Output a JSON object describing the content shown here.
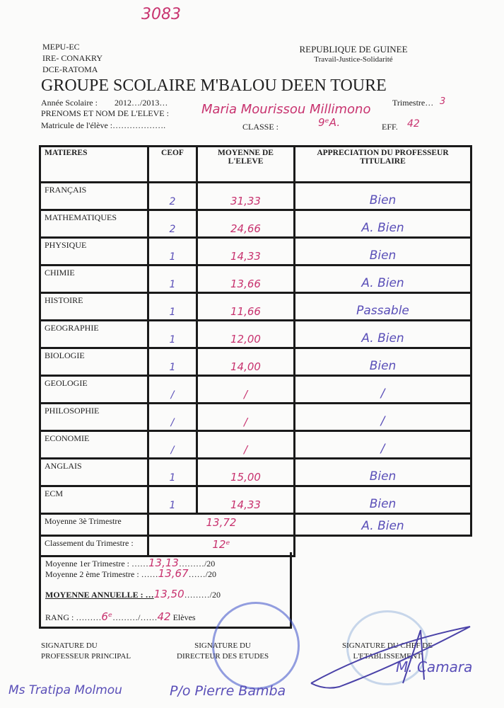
{
  "doc_number": "3083",
  "header_left": [
    "MEPU-EC",
    "IRE- CONAKRY",
    "DCE-RATOMA"
  ],
  "header_right": {
    "country": "REPUBLIQUE DE GUINEE",
    "motto": "Travail-Justice-Solidarité"
  },
  "school": "GROUPE SCOLAIRE M'BALOU DEEN TOURE",
  "fields": {
    "annee_label": "Année Scolaire :",
    "annee_value": "2012…/2013…",
    "trimestre_label": "Trimestre…",
    "trimestre_value": "3",
    "nom_label": "PRENOMS ET NOM DE L'ELEVE :",
    "nom_value": "Maria Mourissou Millimono",
    "matricule_label": "Matricule de l'élève :……………….",
    "classe_label": "CLASSE :",
    "classe_value": "9ᵉA.",
    "eff_label": "EFF.",
    "eff_value": "42"
  },
  "table": {
    "headers": [
      "MATIERES",
      "CEOF",
      "MOYENNE DE L'ELEVE",
      "APPRECIATION DU PROFESSEUR TITULAIRE"
    ],
    "rows": [
      {
        "matiere": "FRANÇAIS",
        "ceof": "2",
        "moyenne": "31,33",
        "appreciation": "Bien"
      },
      {
        "matiere": "MATHEMATIQUES",
        "ceof": "2",
        "moyenne": "24,66",
        "appreciation": "A. Bien"
      },
      {
        "matiere": "PHYSIQUE",
        "ceof": "1",
        "moyenne": "14,33",
        "appreciation": "Bien"
      },
      {
        "matiere": "CHIMIE",
        "ceof": "1",
        "moyenne": "13,66",
        "appreciation": "A. Bien"
      },
      {
        "matiere": "HISTOIRE",
        "ceof": "1",
        "moyenne": "11,66",
        "appreciation": "Passable"
      },
      {
        "matiere": "GEOGRAPHIE",
        "ceof": "1",
        "moyenne": "12,00",
        "appreciation": "A. Bien"
      },
      {
        "matiere": "BIOLOGIE",
        "ceof": "1",
        "moyenne": "14,00",
        "appreciation": "Bien"
      },
      {
        "matiere": "GEOLOGIE",
        "ceof": "/",
        "moyenne": "/",
        "appreciation": "/"
      },
      {
        "matiere": "PHILOSOPHIE",
        "ceof": "/",
        "moyenne": "/",
        "appreciation": "/"
      },
      {
        "matiere": "ECONOMIE",
        "ceof": "/",
        "moyenne": "/",
        "appreciation": "/"
      },
      {
        "matiere": "ANGLAIS",
        "ceof": "1",
        "moyenne": "15,00",
        "appreciation": "Bien"
      },
      {
        "matiere": "ECM",
        "ceof": "1",
        "moyenne": "14,33",
        "appreciation": "Bien"
      }
    ],
    "moyenne_trim_label": "Moyenne 3è Trimestre",
    "moyenne_trim_value": "13,72",
    "moyenne_trim_appr": "A. Bien",
    "classement_label": "Classement du Trimestre :",
    "classement_value": "12ᵉ"
  },
  "summary": {
    "moy1_label": "Moyenne 1er Trimestre : ……",
    "moy1_value": "13,13",
    "moy1_suffix": "………/20",
    "moy2_label": "Moyenne 2 ème Trimestre : ……",
    "moy2_value": "13,67",
    "moy2_suffix": "……/20",
    "annuelle_label": "MOYENNE ANNUELLE : …",
    "annuelle_value": "13,50",
    "annuelle_suffix": "………/20",
    "rang_label": "RANG : ………",
    "rang_value": "6ᵉ",
    "rang_sep": "………/……",
    "rang_total": "42",
    "rang_suffix": "Elèves"
  },
  "signatures": {
    "prof_label": [
      "SIGNATURE DU",
      "PROFESSEUR PRINCIPAL"
    ],
    "directeur_label": [
      "SIGNATURE DU",
      "DIRECTEUR DES ETUDES"
    ],
    "chef_label": [
      "SIGNATURE DU CHEF DE",
      "L'ETABLISSEMENT"
    ],
    "prof_name": "Ms Tratipa Molmou",
    "directeur_name": "P/o Pierre Bamba",
    "chef_name": "M. Camara"
  }
}
